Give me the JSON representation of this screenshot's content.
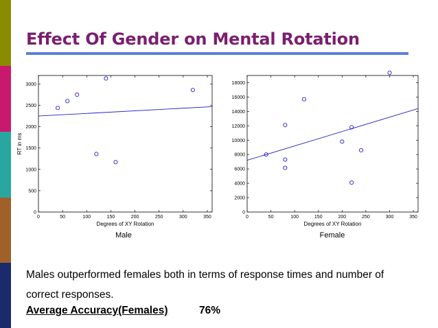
{
  "slide": {
    "title": "Effect Of Gender on Mental Rotation",
    "body_text": "Males outperformed females both in terms of response times and number of correct responses.",
    "accuracy_label": "Average Accuracy(Females)",
    "accuracy_value": "76%"
  },
  "colors": {
    "title": "#7a1f6e",
    "rule": "#5b7fd6",
    "marker": "#2020c0",
    "left_bar": [
      "#8b8b00",
      "#c8196e",
      "#2aa6a0",
      "#a0602a",
      "#1a2a6a"
    ]
  },
  "chart_data": [
    {
      "type": "scatter",
      "title": "",
      "caption": "Male",
      "xlabel": "Degrees of XY Rotation",
      "ylabel": "RT in ms",
      "xlim": [
        0,
        360
      ],
      "ylim": [
        0,
        3200
      ],
      "xticks": [
        0,
        50,
        100,
        150,
        200,
        250,
        300,
        350
      ],
      "yticks": [
        0,
        500,
        1000,
        1500,
        2000,
        2500,
        3000
      ],
      "points": [
        {
          "x": 40,
          "y": 2440
        },
        {
          "x": 60,
          "y": 2600
        },
        {
          "x": 80,
          "y": 2750
        },
        {
          "x": 120,
          "y": 1360
        },
        {
          "x": 140,
          "y": 3130
        },
        {
          "x": 160,
          "y": 1170
        },
        {
          "x": 320,
          "y": 2860
        }
      ],
      "trendline": {
        "x": [
          0,
          360
        ],
        "y": [
          2250,
          2470
        ]
      },
      "grid": false
    },
    {
      "type": "scatter",
      "title": "",
      "caption": "Female",
      "xlabel": "Degrees of XY Rotation",
      "ylabel": "",
      "xlim": [
        0,
        360
      ],
      "ylim": [
        0,
        19000
      ],
      "xticks": [
        0,
        50,
        100,
        150,
        200,
        250,
        300,
        350
      ],
      "yticks": [
        0,
        2000,
        4000,
        6000,
        8000,
        10000,
        12000,
        14000,
        16000,
        18000
      ],
      "points": [
        {
          "x": 40,
          "y": 8000
        },
        {
          "x": 80,
          "y": 12100
        },
        {
          "x": 80,
          "y": 7300
        },
        {
          "x": 80,
          "y": 6150
        },
        {
          "x": 120,
          "y": 15700
        },
        {
          "x": 200,
          "y": 9800
        },
        {
          "x": 220,
          "y": 11800
        },
        {
          "x": 220,
          "y": 4100
        },
        {
          "x": 240,
          "y": 8600
        },
        {
          "x": 300,
          "y": 19500
        }
      ],
      "trendline": {
        "x": [
          0,
          360
        ],
        "y": [
          7200,
          14400
        ]
      },
      "grid": false
    }
  ]
}
